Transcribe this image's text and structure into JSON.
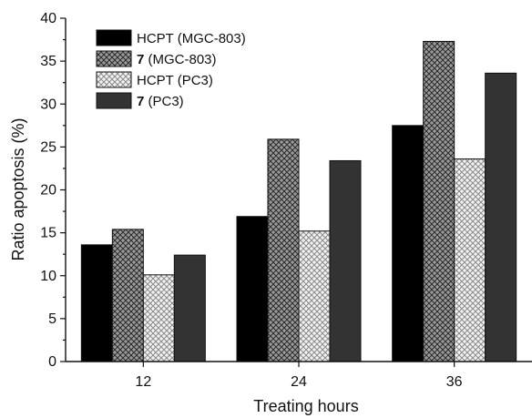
{
  "chart_data": {
    "type": "bar",
    "categories": [
      "12",
      "24",
      "36"
    ],
    "series": [
      {
        "name_bold": "",
        "name_rest": "HCPT (MGC-803)",
        "values": [
          13.6,
          16.9,
          27.5
        ],
        "pattern": "solid-black"
      },
      {
        "name_bold": "7",
        "name_rest": " (MGC-803)",
        "values": [
          15.4,
          25.9,
          37.3
        ],
        "pattern": "crosshatch-dense"
      },
      {
        "name_bold": "",
        "name_rest": "HCPT (PC3)",
        "values": [
          10.1,
          15.2,
          23.6
        ],
        "pattern": "crosshatch-light"
      },
      {
        "name_bold": "7",
        "name_rest": " (PC3)",
        "values": [
          12.4,
          23.4,
          33.6
        ],
        "pattern": "solid-dark"
      }
    ],
    "xlabel": "Treating hours",
    "ylabel": "Ratio apoptosis (%)",
    "ylim": [
      0,
      40
    ],
    "yticks": [
      "0",
      "5",
      "10",
      "15",
      "20",
      "25",
      "30",
      "35",
      "40"
    ],
    "grid": false,
    "legend_position": "top-left",
    "colors": {
      "solid_black": "#000000",
      "solid_dark": "#333333",
      "hatch_dark": "#222222",
      "hatch_light": "#bbbbbb"
    }
  }
}
